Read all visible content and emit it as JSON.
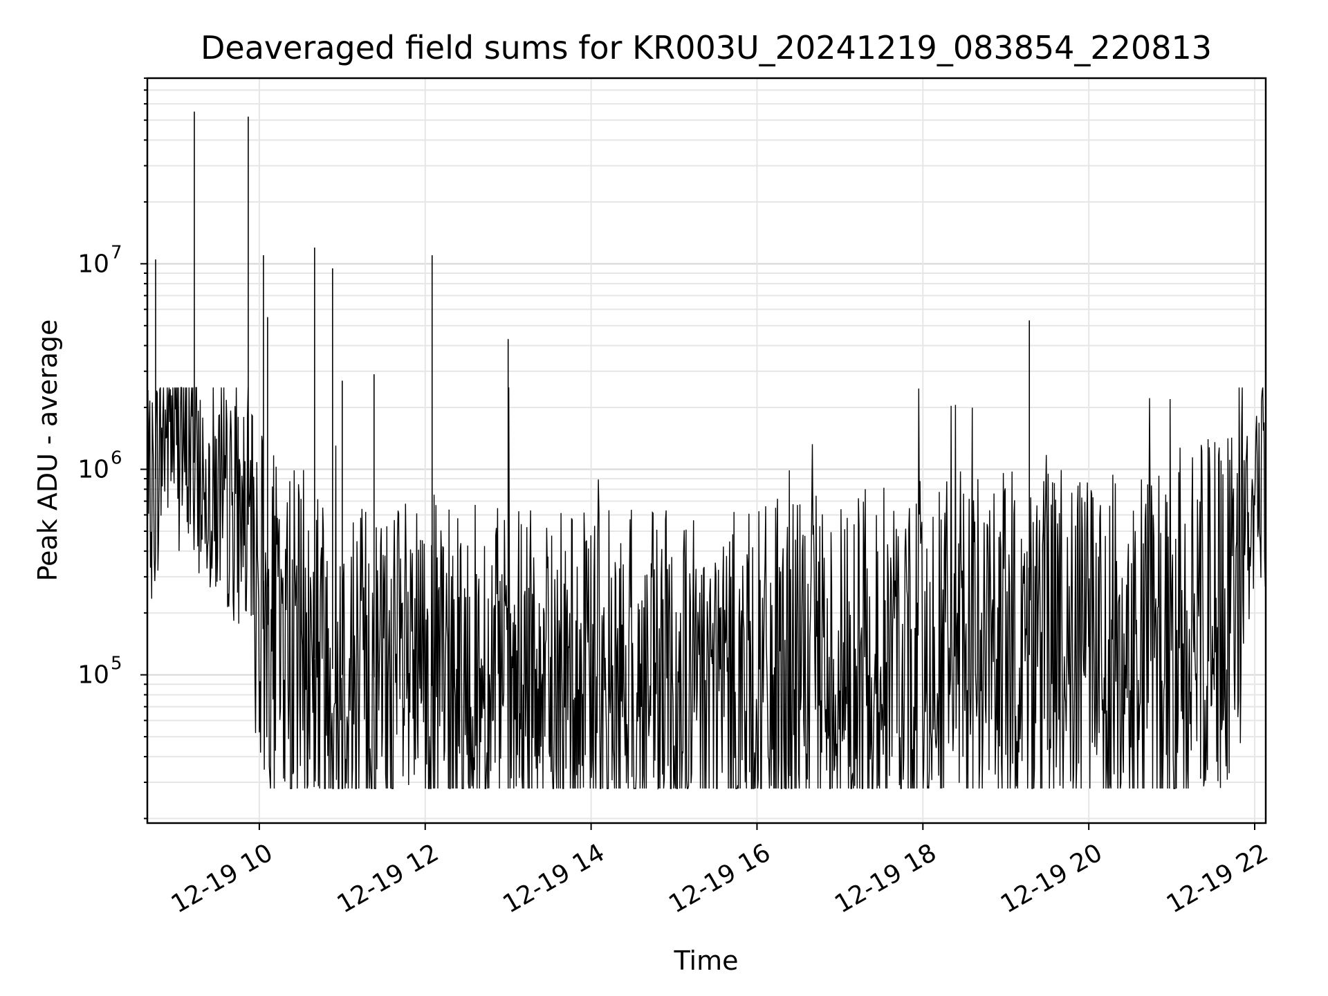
{
  "chart_data": {
    "type": "line",
    "title": "Deaveraged field sums for KR003U_20241219_083854_220813",
    "xlabel": "Time",
    "ylabel": "Peak ADU - average",
    "x_ticks": [
      "12-19 10",
      "12-19 12",
      "12-19 14",
      "12-19 16",
      "12-19 18",
      "12-19 20",
      "12-19 22"
    ],
    "x_range": [
      "2024-12-19 08:39",
      "2024-12-19 22:08"
    ],
    "y_scale": "log",
    "y_range": [
      19000,
      80000000
    ],
    "y_ticks": [
      {
        "base": "10",
        "exp": "5",
        "value": 100000
      },
      {
        "base": "10",
        "exp": "6",
        "value": 1000000
      },
      {
        "base": "10",
        "exp": "7",
        "value": 10000000
      }
    ],
    "grid": true,
    "line_color": "#000000",
    "series": [
      {
        "x": [
          "08:39",
          "08:45",
          "08:50",
          "08:55",
          "09:00",
          "09:05",
          "09:10",
          "09:15",
          "09:20",
          "09:25",
          "09:30",
          "09:35",
          "09:40",
          "09:45",
          "09:50",
          "09:55",
          "10:00",
          "10:10",
          "10:20",
          "10:30",
          "10:40",
          "10:50",
          "11:00",
          "11:15",
          "11:30",
          "11:45",
          "12:00",
          "12:15",
          "12:30",
          "12:45",
          "13:00",
          "13:15",
          "13:30",
          "13:45",
          "14:00",
          "14:15",
          "14:30",
          "14:45",
          "15:00",
          "15:15",
          "15:30",
          "15:45",
          "16:00",
          "16:15",
          "16:30",
          "16:45",
          "17:00",
          "17:15",
          "17:30",
          "17:45",
          "18:00",
          "18:15",
          "18:30",
          "18:45",
          "19:00",
          "19:15",
          "19:30",
          "19:45",
          "20:00",
          "20:15",
          "20:30",
          "20:45",
          "21:00",
          "21:15",
          "21:30",
          "21:45",
          "21:55",
          "22:00",
          "22:05",
          "22:08"
        ],
        "values": [
          520000,
          900000,
          1400000,
          1800000,
          1500000,
          1300000,
          1200000,
          1000000,
          900000,
          800000,
          750000,
          700000,
          650000,
          600000,
          550000,
          520000,
          220000,
          150000,
          140000,
          130000,
          120000,
          110000,
          100000,
          100000,
          95000,
          90000,
          90000,
          85000,
          85000,
          85000,
          80000,
          80000,
          80000,
          80000,
          80000,
          80000,
          80000,
          80000,
          80000,
          80000,
          80000,
          80000,
          82000,
          85000,
          90000,
          95000,
          100000,
          105000,
          110000,
          115000,
          120000,
          125000,
          125000,
          125000,
          125000,
          125000,
          125000,
          120000,
          120000,
          120000,
          115000,
          115000,
          110000,
          150000,
          200000,
          200000,
          400000,
          900000,
          1000000,
          800000
        ]
      }
    ],
    "spikes": [
      {
        "x": "08:45",
        "y": 10500000
      },
      {
        "x": "09:13",
        "y": 55000000
      },
      {
        "x": "09:52",
        "y": 52000000
      },
      {
        "x": "10:03",
        "y": 11000000
      },
      {
        "x": "10:06",
        "y": 5500000
      },
      {
        "x": "10:40",
        "y": 12000000
      },
      {
        "x": "10:53",
        "y": 9500000
      },
      {
        "x": "11:00",
        "y": 2700000
      },
      {
        "x": "11:23",
        "y": 2900000
      },
      {
        "x": "12:05",
        "y": 11000000
      },
      {
        "x": "13:00",
        "y": 4300000
      },
      {
        "x": "19:17",
        "y": 5300000
      }
    ]
  }
}
